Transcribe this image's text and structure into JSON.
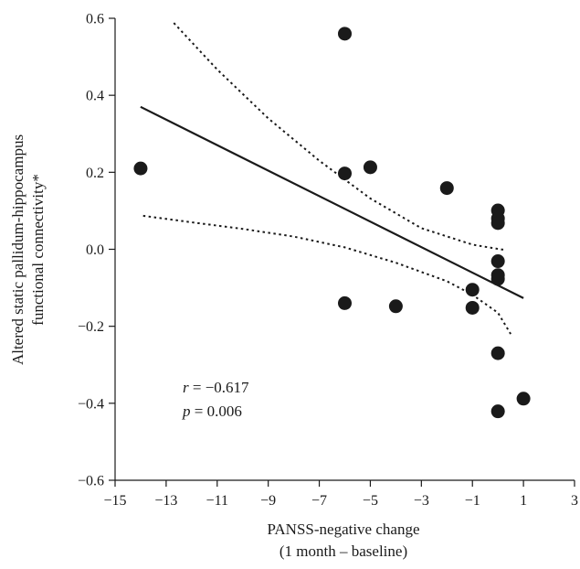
{
  "chart_data": {
    "type": "scatter",
    "xlabel_lines": [
      "PANSS-negative change",
      "(1 month – baseline)"
    ],
    "ylabel_lines": [
      "Altered static pallidum-hippocampus",
      "functional connectivity*"
    ],
    "xlim": [
      -15,
      3
    ],
    "ylim": [
      -0.6,
      0.6
    ],
    "xticks": [
      -15,
      -13,
      -11,
      -9,
      -7,
      -5,
      -3,
      -1,
      1,
      3
    ],
    "yticks": [
      -0.6,
      -0.4,
      -0.2,
      0.0,
      0.2,
      0.4,
      0.6
    ],
    "xtick_labels": [
      "−15",
      "−13",
      "−11",
      "−9",
      "−7",
      "−5",
      "−3",
      "−1",
      "1",
      "3"
    ],
    "ytick_labels": [
      "−0.6",
      "−0.4",
      "−0.2",
      "0.0",
      "0.2",
      "0.4",
      "0.6"
    ],
    "points": [
      {
        "x": -14,
        "y": 0.21
      },
      {
        "x": -6,
        "y": 0.56
      },
      {
        "x": -6,
        "y": 0.197
      },
      {
        "x": -6,
        "y": -0.14
      },
      {
        "x": -5,
        "y": 0.213
      },
      {
        "x": -4,
        "y": -0.148
      },
      {
        "x": -2,
        "y": 0.159
      },
      {
        "x": -1,
        "y": -0.105
      },
      {
        "x": -1,
        "y": -0.152
      },
      {
        "x": 0,
        "y": 0.101
      },
      {
        "x": 0,
        "y": 0.08
      },
      {
        "x": 0,
        "y": 0.068
      },
      {
        "x": 0,
        "y": -0.031
      },
      {
        "x": 0,
        "y": -0.067
      },
      {
        "x": 0,
        "y": -0.077
      },
      {
        "x": 0,
        "y": -0.27
      },
      {
        "x": 0,
        "y": -0.421
      },
      {
        "x": 1,
        "y": -0.388
      }
    ],
    "fit_line": [
      [
        -14,
        0.37
      ],
      [
        1,
        -0.127
      ]
    ],
    "ci_upper": [
      [
        -12.7,
        0.588
      ],
      [
        -11,
        0.467
      ],
      [
        -9,
        0.34
      ],
      [
        -7,
        0.23
      ],
      [
        -5,
        0.132
      ],
      [
        -3,
        0.055
      ],
      [
        -1,
        0.012
      ],
      [
        0,
        0.001
      ],
      [
        0.3,
        -0.002
      ]
    ],
    "ci_lower": [
      [
        -13.9,
        0.087
      ],
      [
        -12,
        0.07
      ],
      [
        -10,
        0.053
      ],
      [
        -8,
        0.033
      ],
      [
        -6,
        0.005
      ],
      [
        -4,
        -0.035
      ],
      [
        -2,
        -0.083
      ],
      [
        -1,
        -0.118
      ],
      [
        0,
        -0.165
      ],
      [
        0.5,
        -0.22
      ]
    ],
    "stats": {
      "r_symbol": "r",
      "r_value": " = −0.617",
      "p_symbol": "p",
      "p_value": " = 0.006"
    }
  }
}
